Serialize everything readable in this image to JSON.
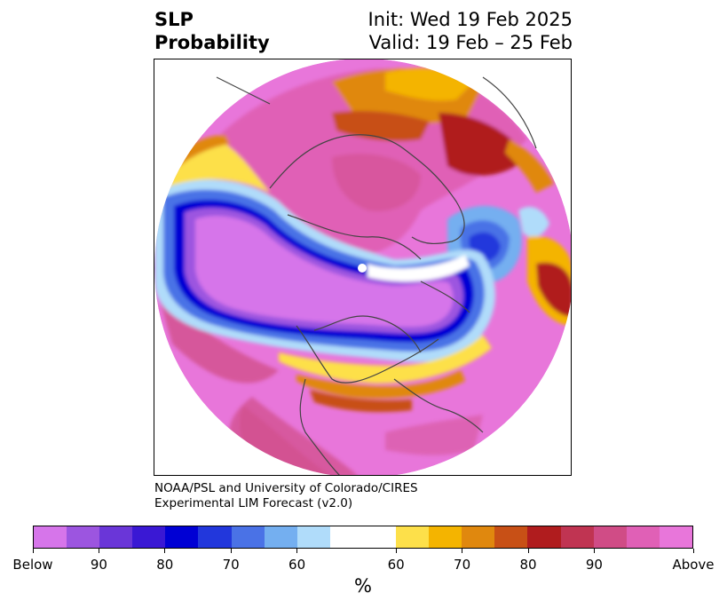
{
  "header": {
    "title_line1": "SLP",
    "title_line2": "Probability",
    "init_text": "Init: Wed 19 Feb 2025",
    "valid_text": "Valid: 19 Feb – 25 Feb"
  },
  "credit": {
    "line1": "NOAA/PSL and University of Colorado/CIRES",
    "line2": "Experimental LIM Forecast (v2.0)"
  },
  "colorbar": {
    "unit": "%",
    "below_colors": [
      "#d675ea",
      "#9c55e0",
      "#6a36d8",
      "#3a18d4",
      "#0000d4",
      "#2237dc",
      "#4a72e6",
      "#74aff0",
      "#b0dcfa"
    ],
    "neutral_color": "#ffffff",
    "above_colors": [
      "#fde04a",
      "#f4b400",
      "#e0880e",
      "#c85016",
      "#b01c1e",
      "#c03452",
      "#d04c86",
      "#e060b6",
      "#e876da"
    ],
    "tick_labels": [
      "Below",
      "90",
      "80",
      "70",
      "60",
      "60",
      "70",
      "80",
      "90",
      "Above"
    ]
  },
  "map": {
    "projection": "north-polar-stereographic",
    "field": "SLP probability",
    "features": [
      "coastlines",
      "country-borders",
      "us-state-borders"
    ]
  }
}
